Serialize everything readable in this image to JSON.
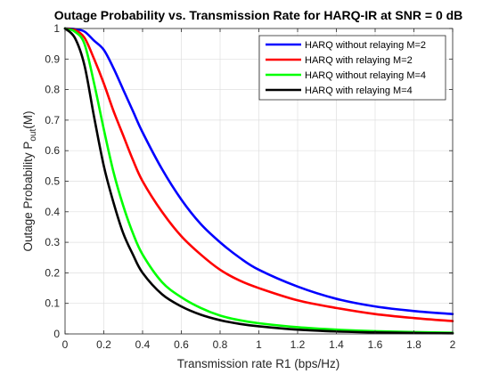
{
  "chart_data": {
    "type": "line",
    "title": "Outage Probability vs. Transmission Rate for HARQ-IR at SNR = 0 dB",
    "xlabel": "Transmission rate R1 (bps/Hz)",
    "ylabel": {
      "prefix": "Outage Probability P",
      "subscript": "out",
      "suffix": "(M)"
    },
    "xlim": [
      0,
      2
    ],
    "ylim": [
      0,
      1
    ],
    "xticks": [
      0,
      0.2,
      0.4,
      0.6,
      0.8,
      1,
      1.2,
      1.4,
      1.6,
      1.8,
      2
    ],
    "xtick_labels": [
      "0",
      "0.2",
      "0.4",
      "0.6",
      "0.8",
      "1",
      "1.2",
      "1.4",
      "1.6",
      "1.8",
      "2"
    ],
    "yticks": [
      0,
      0.1,
      0.2,
      0.3,
      0.4,
      0.5,
      0.6,
      0.7,
      0.8,
      0.9,
      1
    ],
    "ytick_labels": [
      "0",
      "0.1",
      "0.2",
      "0.3",
      "0.4",
      "0.5",
      "0.6",
      "0.7",
      "0.8",
      "0.9",
      "1"
    ],
    "grid": true,
    "legend_position": "top-right",
    "x": [
      0,
      0.05,
      0.1,
      0.15,
      0.2,
      0.25,
      0.3,
      0.35,
      0.4,
      0.5,
      0.6,
      0.7,
      0.8,
      0.9,
      1.0,
      1.2,
      1.4,
      1.6,
      1.8,
      2.0
    ],
    "series": [
      {
        "name": "HARQ without relaying M=2",
        "color": "#0000ff",
        "values": [
          1.0,
          0.998,
          0.99,
          0.96,
          0.93,
          0.87,
          0.8,
          0.73,
          0.66,
          0.54,
          0.44,
          0.36,
          0.3,
          0.25,
          0.21,
          0.155,
          0.115,
          0.09,
          0.075,
          0.065
        ]
      },
      {
        "name": "HARQ with relaying M=2",
        "color": "#ff0000",
        "values": [
          1.0,
          0.995,
          0.97,
          0.9,
          0.82,
          0.73,
          0.65,
          0.57,
          0.5,
          0.4,
          0.32,
          0.26,
          0.21,
          0.175,
          0.15,
          0.11,
          0.085,
          0.065,
          0.052,
          0.042
        ]
      },
      {
        "name": "HARQ without relaying M=4",
        "color": "#00ff00",
        "values": [
          1.0,
          0.99,
          0.95,
          0.82,
          0.67,
          0.53,
          0.42,
          0.33,
          0.26,
          0.17,
          0.12,
          0.085,
          0.06,
          0.045,
          0.035,
          0.022,
          0.014,
          0.009,
          0.006,
          0.004
        ]
      },
      {
        "name": "HARQ with relaying M=4",
        "color": "#000000",
        "values": [
          1.0,
          0.97,
          0.88,
          0.71,
          0.55,
          0.43,
          0.33,
          0.26,
          0.2,
          0.13,
          0.09,
          0.063,
          0.045,
          0.033,
          0.025,
          0.014,
          0.008,
          0.005,
          0.003,
          0.002
        ]
      }
    ]
  }
}
